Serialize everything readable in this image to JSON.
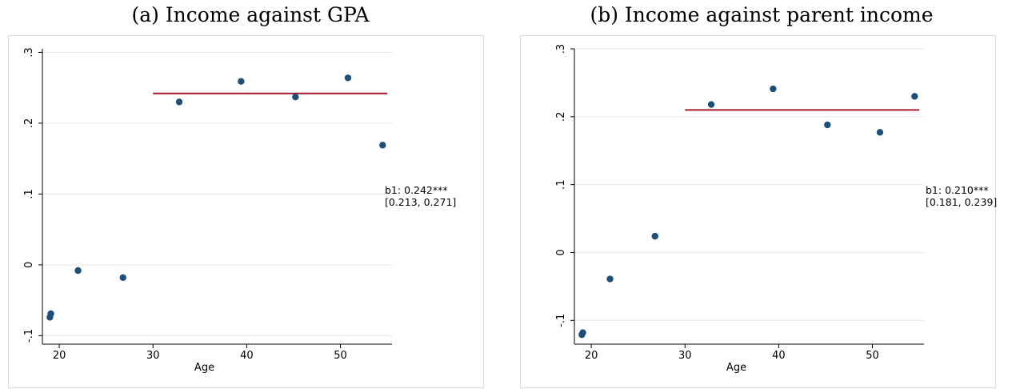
{
  "panels": [
    {
      "title": "(a) Income against GPA",
      "annotation": {
        "line1": "b1: 0.242***",
        "line2": "[0.213, 0.271]"
      }
    },
    {
      "title": "(b) Income against parent income",
      "annotation": {
        "line1": "b1: 0.210***",
        "line2": "[0.181, 0.239]"
      }
    }
  ],
  "colors": {
    "points": "#1f4e79",
    "fit_line": "#a6192e",
    "grid": "#e8e8e8",
    "axis": "#000000"
  },
  "chart_data": [
    {
      "type": "scatter",
      "title": "(a) Income against GPA",
      "xlabel": "Age",
      "ylabel": "",
      "xlim": [
        18.2,
        55.5
      ],
      "ylim": [
        -0.112,
        0.305
      ],
      "xticks": [
        20,
        30,
        40,
        50
      ],
      "xtick_labels": [
        "20",
        "30",
        "40",
        "50"
      ],
      "yticks": [
        -0.1,
        0,
        0.1,
        0.2,
        0.3
      ],
      "ytick_labels": [
        "-.1",
        "0",
        ".1",
        ".2",
        ".3"
      ],
      "grid": true,
      "points": [
        {
          "x": 19,
          "y": -0.074
        },
        {
          "x": 19.1,
          "y": -0.069
        },
        {
          "x": 22,
          "y": -0.008
        },
        {
          "x": 26.8,
          "y": -0.018
        },
        {
          "x": 32.8,
          "y": 0.23
        },
        {
          "x": 39.4,
          "y": 0.259
        },
        {
          "x": 45.2,
          "y": 0.237
        },
        {
          "x": 50.8,
          "y": 0.264
        },
        {
          "x": 54.5,
          "y": 0.169
        }
      ],
      "fit_line": {
        "x_start": 30,
        "x_end": 55,
        "y": 0.242
      }
    },
    {
      "type": "scatter",
      "title": "(b) Income against parent income",
      "xlabel": "Age",
      "ylabel": "",
      "xlim": [
        18.2,
        55.5
      ],
      "ylim": [
        -0.135,
        0.3
      ],
      "xticks": [
        20,
        30,
        40,
        50
      ],
      "xtick_labels": [
        "20",
        "30",
        "40",
        "50"
      ],
      "yticks": [
        -0.1,
        0,
        0.1,
        0.2,
        0.3
      ],
      "ytick_labels": [
        "-.1",
        "0",
        ".1",
        ".2",
        ".3"
      ],
      "grid": true,
      "points": [
        {
          "x": 19,
          "y": -0.121
        },
        {
          "x": 19.1,
          "y": -0.118
        },
        {
          "x": 22,
          "y": -0.039
        },
        {
          "x": 26.8,
          "y": 0.024
        },
        {
          "x": 32.8,
          "y": 0.218
        },
        {
          "x": 39.4,
          "y": 0.241
        },
        {
          "x": 45.2,
          "y": 0.188
        },
        {
          "x": 50.8,
          "y": 0.177
        },
        {
          "x": 54.5,
          "y": 0.23
        }
      ],
      "fit_line": {
        "x_start": 30,
        "x_end": 55,
        "y": 0.21
      }
    }
  ]
}
